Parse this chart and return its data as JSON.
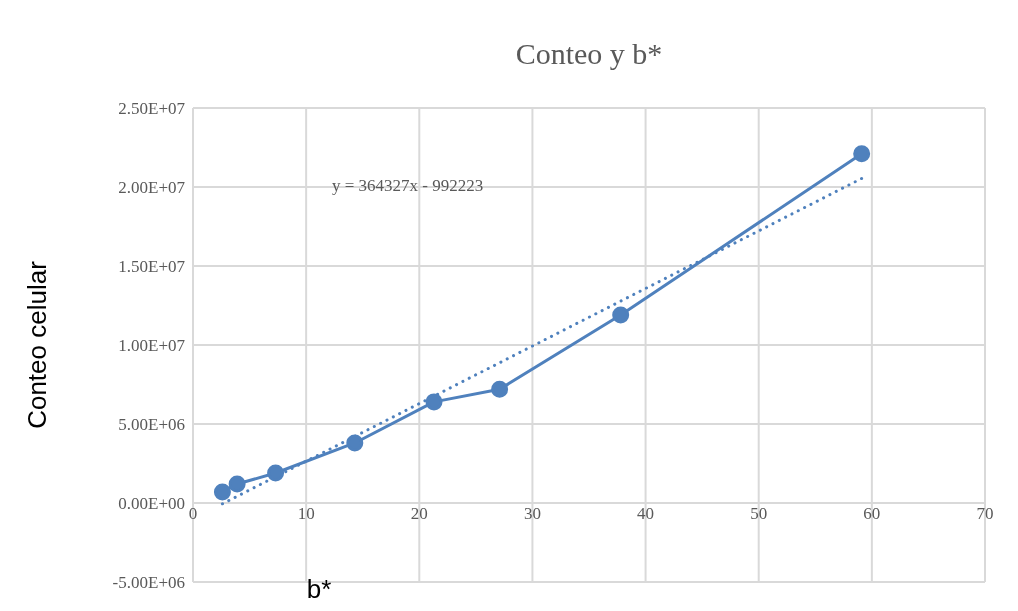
{
  "chart_data": {
    "type": "line",
    "title": "Conteo y b*",
    "xlabel": "b*",
    "ylabel": "Conteo celular",
    "annotations": [
      "y = 364327x - 992223"
    ],
    "xlim": [
      0,
      70
    ],
    "xticks": [
      0,
      10,
      20,
      30,
      40,
      50,
      60,
      70
    ],
    "ylim": [
      -5000000,
      25000000
    ],
    "yticks": [
      {
        "value": -5000000,
        "label": "-5.00E+06"
      },
      {
        "value": 0,
        "label": "0.00E+00"
      },
      {
        "value": 5000000,
        "label": "5.00E+06"
      },
      {
        "value": 10000000,
        "label": "1.00E+07"
      },
      {
        "value": 15000000,
        "label": "1.50E+07"
      },
      {
        "value": 20000000,
        "label": "2.00E+07"
      },
      {
        "value": 25000000,
        "label": "2.50E+07"
      }
    ],
    "grid": true,
    "series": [
      {
        "color": "#4f81bd",
        "marker": "circle",
        "line_style": "solid",
        "x": [
          2.6,
          3.9,
          7.3,
          14.3,
          21.3,
          27.1,
          37.8,
          59.1
        ],
        "values": [
          700000,
          1200000,
          1900000,
          3800000,
          6400000,
          7200000,
          11900000,
          22100000
        ]
      },
      {
        "color": "#4f81bd",
        "marker": "none",
        "line_style": "dotted",
        "x": [
          2.6,
          59.1
        ],
        "values": [
          -50000,
          20540000
        ]
      }
    ]
  }
}
